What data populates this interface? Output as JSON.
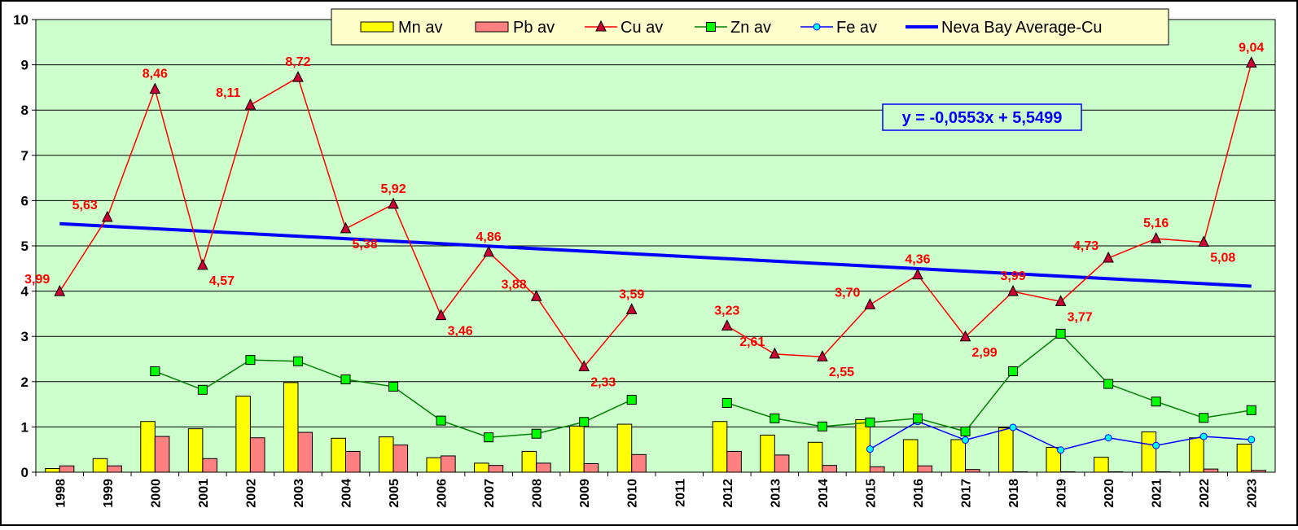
{
  "chart_data": {
    "type": "bar",
    "x": [
      "1998",
      "1999",
      "2000",
      "2001",
      "2002",
      "2003",
      "2004",
      "2005",
      "2006",
      "2007",
      "2008",
      "2009",
      "2010",
      "2011",
      "2012",
      "2013",
      "2014",
      "2015",
      "2016",
      "2017",
      "2018",
      "2019",
      "2020",
      "2021",
      "2022",
      "2023"
    ],
    "ylim": [
      0,
      10
    ],
    "yticks": [
      "0",
      "1",
      "2",
      "3",
      "4",
      "5",
      "6",
      "7",
      "8",
      "9",
      "10"
    ],
    "grid": true,
    "legend_position": "top",
    "background_color": "#ccffcc",
    "series": [
      {
        "name": "Mn av",
        "kind": "bar",
        "color": "#ffff00",
        "values": [
          0.08,
          0.3,
          1.12,
          0.96,
          1.68,
          1.98,
          0.75,
          0.78,
          0.32,
          0.2,
          0.46,
          1.02,
          1.06,
          null,
          1.12,
          0.82,
          0.66,
          1.16,
          0.72,
          0.72,
          0.98,
          0.55,
          0.33,
          0.89,
          0.76,
          0.62
        ]
      },
      {
        "name": "Pb av",
        "kind": "bar",
        "color": "#ff8080",
        "values": [
          0.14,
          0.14,
          0.79,
          0.3,
          0.76,
          0.88,
          0.46,
          0.6,
          0.36,
          0.15,
          0.2,
          0.19,
          0.39,
          null,
          0.46,
          0.38,
          0.15,
          0.12,
          0.14,
          0.06,
          0.01,
          0.01,
          0.01,
          0.01,
          0.07,
          0.04
        ]
      },
      {
        "name": "Cu av",
        "kind": "line",
        "color": "#ff0000",
        "marker": "triangle",
        "values": [
          3.99,
          5.63,
          8.46,
          4.57,
          8.11,
          8.72,
          5.38,
          5.92,
          3.46,
          4.86,
          3.88,
          2.33,
          3.59,
          null,
          3.23,
          2.61,
          2.55,
          3.7,
          4.36,
          2.99,
          3.99,
          3.77,
          4.73,
          5.16,
          5.08,
          9.04
        ],
        "labels": [
          "3,99",
          "5,63",
          "8,46",
          "4,57",
          "8,11",
          "8,72",
          "5,38",
          "5,92",
          "3,46",
          "4,86",
          "3,88",
          "2,33",
          "3,59",
          "",
          "3,23",
          "2,61",
          "2,55",
          "3,70",
          "4,36",
          "2,99",
          "3,99",
          "3,77",
          "4,73",
          "5,16",
          "5,08",
          "9,04"
        ]
      },
      {
        "name": "Zn av",
        "kind": "line",
        "color": "#008000",
        "marker_color": "#00ff00",
        "marker": "square",
        "values": [
          null,
          null,
          2.23,
          1.82,
          2.48,
          2.45,
          2.05,
          1.89,
          1.14,
          0.77,
          0.85,
          1.11,
          1.6,
          null,
          1.53,
          1.19,
          1.01,
          1.1,
          1.19,
          0.9,
          2.23,
          3.06,
          1.95,
          1.56,
          1.2,
          1.37
        ]
      },
      {
        "name": "Fe av",
        "kind": "line",
        "color": "#0000ff",
        "marker_color": "#00ffff",
        "marker": "circle",
        "values": [
          null,
          null,
          null,
          null,
          null,
          null,
          null,
          null,
          null,
          null,
          null,
          null,
          null,
          null,
          null,
          null,
          null,
          0.51,
          1.12,
          0.71,
          0.99,
          0.49,
          0.76,
          0.59,
          0.79,
          0.72
        ]
      },
      {
        "name": "Neva Bay Average-Cu",
        "kind": "trend",
        "color": "#0000ff",
        "start": 5.49,
        "end": 4.11
      }
    ],
    "equation": "y = -0,0553x + 5,5499"
  }
}
